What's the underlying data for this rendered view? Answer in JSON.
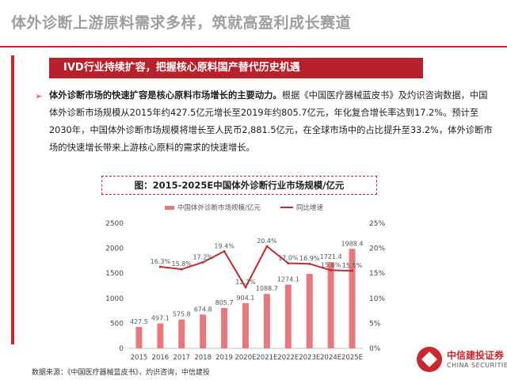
{
  "header": {
    "title": "体外诊断上游原料需求多样，筑就高盈利成长赛道",
    "banner": "IVD行业持续扩容，把握核心原料国产替代历史机遇"
  },
  "body": {
    "bullet": "➢",
    "lead": "体外诊断市场的快速扩容是核心原料市场增长的主要动力。",
    "text": "根据《中国医疗器械蓝皮书》及灼识咨询数据，中国体外诊断市场规模从2015年约427.5亿元增长至2019年约805.7亿元，年化复合增长率达到17.2%。预计至2030年，中国体外诊断市场规模将增长至人民币2,881.5亿元，在全球市场中的占比提升至33.2%，体外诊断市场的快速增长带来上游核心原料的需求的快速增长。"
  },
  "chart_caption": "图：2015-2025E中国体外诊断行业市场规模/亿元",
  "source": "数据来源：《中国医疗器械蓝皮书》，灼识咨询，中信建投",
  "logo": {
    "cn": "中信建投证券",
    "en": "CHINA SECURITIES"
  },
  "colors": {
    "accent": "#c9282d",
    "bar": "#e8787c",
    "line": "#c9282d"
  },
  "chart_data": {
    "type": "bar",
    "categories": [
      "2015",
      "2016",
      "2017",
      "2018",
      "2019",
      "2020E",
      "2021E",
      "2022E",
      "2023E",
      "2024E",
      "2025E"
    ],
    "series": [
      {
        "name": "中国体外诊断市场规模/亿元",
        "type": "bar",
        "axis": "left",
        "values": [
          427.5,
          497.1,
          575.8,
          674.8,
          805.7,
          904.1,
          1088.7,
          1274.1,
          1489.1,
          1721.4,
          1988.4
        ],
        "labels": [
          "427.5",
          "497.1",
          "575.8",
          "674.8",
          "805.7",
          "904.1",
          "1088.7",
          "1274.1",
          "",
          "1721.4",
          "1988.4"
        ]
      },
      {
        "name": "同比增速",
        "type": "line",
        "axis": "right",
        "values": [
          null,
          16.3,
          15.8,
          17.2,
          19.4,
          12.2,
          20.4,
          17.0,
          16.9,
          15.6,
          15.5
        ],
        "labels": [
          "",
          "16.3%",
          "15.8%",
          "17.2%",
          "19.4%",
          "12.2%",
          "20.4%",
          "17.0%",
          "16.9%",
          "15.6%",
          "15.5%"
        ]
      }
    ],
    "ylim_left": [
      0,
      2500
    ],
    "yticks_left": [
      "0",
      "500",
      "1000",
      "1500",
      "2000",
      "2500"
    ],
    "ylim_right": [
      0,
      25
    ],
    "yticks_right": [
      "0%",
      "5%",
      "10%",
      "15%",
      "20%",
      "25%"
    ],
    "grid": false,
    "legend": "top"
  }
}
